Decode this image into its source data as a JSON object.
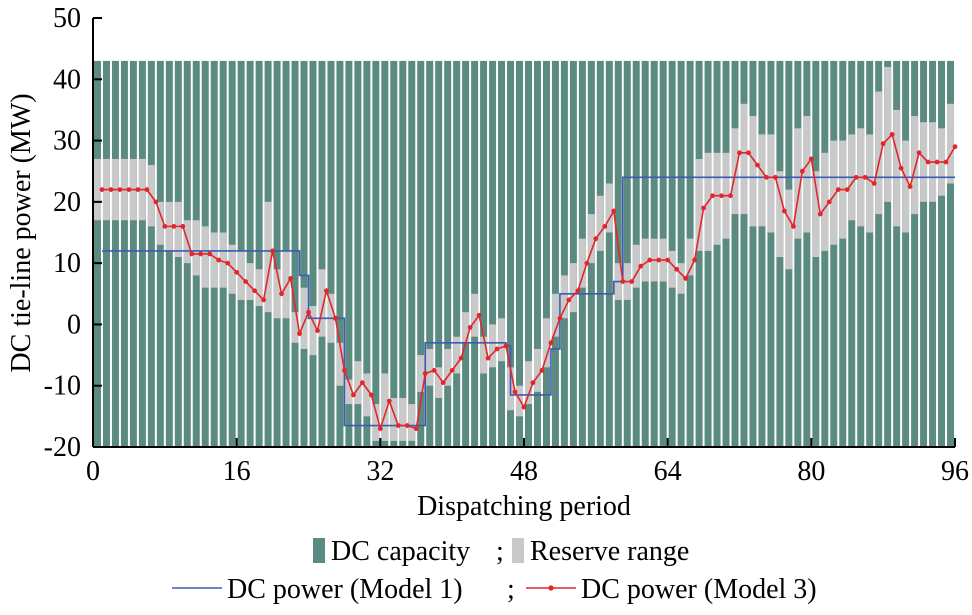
{
  "chart_data": {
    "type": "bar",
    "title": "",
    "xlabel": "Dispatching period",
    "ylabel": "DC tie-line power (MW)",
    "xlim": [
      0,
      96
    ],
    "ylim": [
      -20,
      50
    ],
    "xticks": [
      0,
      16,
      32,
      48,
      64,
      80,
      96
    ],
    "yticks": [
      -20,
      -10,
      0,
      10,
      20,
      30,
      40,
      50
    ],
    "legend_placement": "bottom",
    "legend_rows": [
      [
        "DC capacity",
        "Reserve range"
      ],
      [
        "DC power (Model 1)",
        "DC power (Model 3)"
      ]
    ],
    "legend_separator": ";",
    "colors": {
      "capacity": "#5a8a80",
      "reserve": "#c9c9c9",
      "model1": "#3b5bb5",
      "model3": "#e2262b",
      "axis": "#000000"
    },
    "capacity_value": 43,
    "periods": [
      1,
      2,
      3,
      4,
      5,
      6,
      7,
      8,
      9,
      10,
      11,
      12,
      13,
      14,
      15,
      16,
      17,
      18,
      19,
      20,
      21,
      22,
      23,
      24,
      25,
      26,
      27,
      28,
      29,
      30,
      31,
      32,
      33,
      34,
      35,
      36,
      37,
      38,
      39,
      40,
      41,
      42,
      43,
      44,
      45,
      46,
      47,
      48,
      49,
      50,
      51,
      52,
      53,
      54,
      55,
      56,
      57,
      58,
      59,
      60,
      61,
      62,
      63,
      64,
      65,
      66,
      67,
      68,
      69,
      70,
      71,
      72,
      73,
      74,
      75,
      76,
      77,
      78,
      79,
      80,
      81,
      82,
      83,
      84,
      85,
      86,
      87,
      88,
      89,
      90,
      91,
      92,
      93,
      94,
      95,
      96
    ],
    "series": [
      {
        "name": "DC power (Model 1)",
        "type": "step",
        "x": [
          1,
          23,
          23,
          24,
          24,
          28,
          28,
          37,
          37,
          46,
          46,
          46.5,
          46.5,
          51,
          51,
          52,
          52,
          58,
          58,
          59,
          59,
          96
        ],
        "values": [
          12,
          12,
          8,
          8,
          1,
          1,
          -16.5,
          -16.5,
          -3,
          -3,
          -3.5,
          -3.5,
          -11.5,
          -11.5,
          -4,
          -4,
          5,
          5,
          7,
          7,
          24,
          24
        ]
      },
      {
        "name": "DC power (Model 3)",
        "type": "line",
        "x": [
          1,
          2,
          3,
          4,
          5,
          6,
          7,
          8,
          9,
          10,
          11,
          12,
          13,
          14,
          15,
          16,
          17,
          18,
          19,
          20,
          21,
          22,
          23,
          24,
          25,
          26,
          27,
          28,
          29,
          30,
          31,
          32,
          33,
          34,
          35,
          36,
          37,
          38,
          39,
          40,
          41,
          42,
          43,
          44,
          45,
          46,
          47,
          48,
          49,
          50,
          51,
          52,
          53,
          54,
          55,
          56,
          57,
          58,
          59,
          60,
          61,
          62,
          63,
          64,
          65,
          66,
          67,
          68,
          69,
          70,
          71,
          72,
          73,
          74,
          75,
          76,
          77,
          78,
          79,
          80,
          81,
          82,
          83,
          84,
          85,
          86,
          87,
          88,
          89,
          90,
          91,
          92,
          93,
          94,
          95,
          96
        ],
        "values": [
          22,
          22,
          22,
          22,
          22,
          22,
          20,
          16,
          16,
          16,
          11.5,
          11.5,
          11.5,
          10.5,
          10,
          8.5,
          7,
          5.5,
          4,
          12,
          5,
          7.5,
          -1.5,
          2,
          -1,
          5.5,
          1,
          -7.5,
          -11.5,
          -9.5,
          -11.5,
          -17,
          -12.5,
          -16.5,
          -16.5,
          -17,
          -8,
          -7.5,
          -9.5,
          -7.5,
          -5.5,
          -0.5,
          1.5,
          -5.5,
          -4,
          -3.5,
          -11,
          -13.5,
          -9.5,
          -7.5,
          -3,
          1,
          4,
          5.5,
          10,
          14,
          16,
          18.5,
          7,
          7,
          9.5,
          10.5,
          10.5,
          10.5,
          9,
          7.5,
          10.5,
          19,
          21,
          21,
          21,
          28,
          28,
          26,
          24,
          24,
          18.5,
          16,
          25,
          27,
          18,
          20,
          22,
          22,
          24,
          24,
          23,
          29.5,
          31,
          25.5,
          22.5,
          28,
          26.5,
          26.5,
          26.5,
          29
        ]
      }
    ],
    "reserve_range": {
      "lower": [
        17,
        17,
        17,
        17,
        17,
        17,
        16,
        13,
        12,
        11,
        10,
        8,
        6,
        6,
        6,
        5,
        4,
        4,
        3,
        2,
        1,
        1,
        -3,
        -4,
        -5,
        -2,
        -3,
        -10,
        -13,
        -13,
        -15,
        -19,
        -19,
        -19,
        -19,
        -19,
        -11,
        -10,
        -12,
        -10,
        -8,
        -3,
        -2,
        -8,
        -7,
        -6,
        -14,
        -15,
        -13,
        -11,
        -7,
        -2,
        1,
        2,
        6,
        10,
        12,
        15,
        4,
        4,
        6,
        7,
        7,
        7,
        6,
        5,
        8,
        12,
        12,
        13,
        14,
        18,
        18,
        16,
        16,
        15,
        11,
        9,
        14,
        15,
        11,
        12,
        13,
        14,
        17,
        16,
        15,
        18,
        20,
        16,
        15,
        18,
        20,
        20,
        21,
        23
      ],
      "upper": [
        27,
        27,
        27,
        27,
        27,
        27,
        26,
        20,
        20,
        20,
        17,
        17,
        16,
        15,
        15,
        13,
        12,
        10,
        9,
        20,
        9,
        12,
        2,
        6,
        3,
        9,
        5,
        -3,
        -9,
        -6,
        -8,
        -13,
        -8,
        -12,
        -12,
        -13,
        -5,
        -4,
        -7,
        -4,
        -2,
        2,
        5,
        -2,
        0,
        1,
        -7,
        -10,
        -6,
        -4,
        1,
        5,
        8,
        10,
        14,
        18,
        21,
        23,
        10,
        10,
        13,
        14,
        14,
        14,
        12,
        10,
        14,
        27,
        28,
        28,
        28,
        32,
        36,
        34,
        31,
        31,
        25,
        22,
        32,
        34,
        25,
        28,
        30,
        30,
        31,
        32,
        31,
        38,
        42,
        35,
        30,
        34,
        33,
        33,
        32,
        36
      ]
    }
  }
}
